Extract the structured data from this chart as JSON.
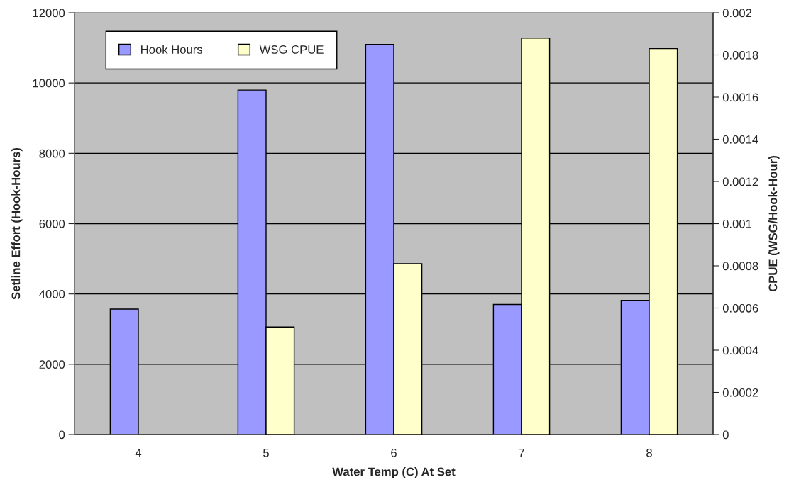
{
  "chart_data": {
    "type": "bar",
    "categories": [
      "4",
      "5",
      "6",
      "7",
      "8"
    ],
    "series": [
      {
        "name": "Hook Hours",
        "color": "#9999ff",
        "values": [
          3570,
          9800,
          11100,
          3700,
          3820
        ]
      },
      {
        "name": "WSG CPUE",
        "color": "#ffffcc",
        "values": [
          null,
          0.00051,
          0.00081,
          0.00188,
          0.00183
        ],
        "axis": "y2"
      }
    ],
    "xlabel": "Water Temp (C) At Set",
    "ylabel": "Setline Effort (Hook-Hours)",
    "y2label": "CPUE (WSG/Hook-Hour)",
    "ylim": [
      0,
      12000
    ],
    "yticks": [
      0,
      2000,
      4000,
      6000,
      8000,
      10000,
      12000
    ],
    "y2lim": [
      0,
      0.002
    ],
    "y2ticks": [
      0,
      0.0002,
      0.0004,
      0.0006,
      0.0008,
      0.001,
      0.0012,
      0.0014,
      0.0016,
      0.0018,
      0.002
    ],
    "grid": "y",
    "legend": "top left"
  }
}
